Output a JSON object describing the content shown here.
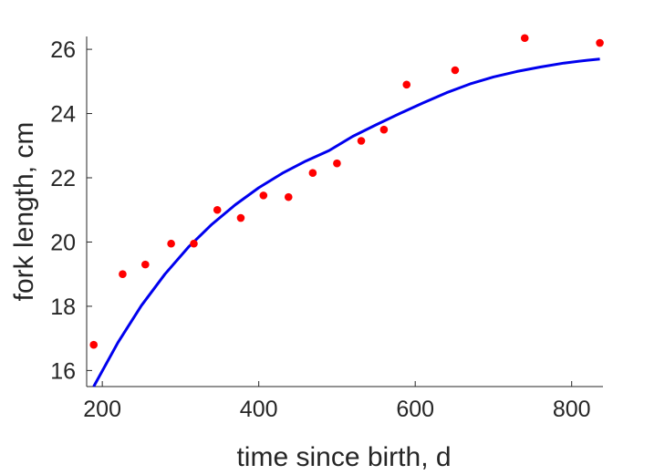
{
  "chart_data": {
    "type": "scatter",
    "title": "",
    "xlabel": "time since birth, d",
    "ylabel": "fork length, cm",
    "xlim": [
      180,
      840
    ],
    "ylim": [
      15.5,
      26.4
    ],
    "xticks": [
      200,
      400,
      600,
      800
    ],
    "yticks": [
      16,
      18,
      20,
      22,
      24,
      26
    ],
    "grid": false,
    "legend": "none",
    "series": [
      {
        "kind": "scatter",
        "color": "#ff0000",
        "points": [
          [
            189,
            16.8
          ],
          [
            226,
            19.0
          ],
          [
            255,
            19.3
          ],
          [
            288,
            19.95
          ],
          [
            317,
            19.95
          ],
          [
            347,
            21.0
          ],
          [
            377,
            20.75
          ],
          [
            406,
            21.45
          ],
          [
            438,
            21.4
          ],
          [
            469,
            22.15
          ],
          [
            500,
            22.45
          ],
          [
            531,
            23.15
          ],
          [
            560,
            23.5
          ],
          [
            589,
            24.9
          ],
          [
            651,
            25.35
          ],
          [
            740,
            26.35
          ],
          [
            836,
            26.2
          ]
        ]
      },
      {
        "kind": "line",
        "color": "#0000ee",
        "points": [
          [
            189,
            15.5
          ],
          [
            220,
            16.87
          ],
          [
            250,
            18.02
          ],
          [
            280,
            19.0
          ],
          [
            310,
            19.84
          ],
          [
            340,
            20.55
          ],
          [
            370,
            21.16
          ],
          [
            400,
            21.69
          ],
          [
            430,
            22.14
          ],
          [
            460,
            22.52
          ],
          [
            490,
            22.85
          ],
          [
            520,
            23.29
          ],
          [
            550,
            23.65
          ],
          [
            580,
            24.0
          ],
          [
            610,
            24.33
          ],
          [
            640,
            24.65
          ],
          [
            670,
            24.92
          ],
          [
            700,
            25.14
          ],
          [
            730,
            25.31
          ],
          [
            760,
            25.45
          ],
          [
            790,
            25.57
          ],
          [
            820,
            25.66
          ],
          [
            836,
            25.7
          ]
        ]
      }
    ]
  }
}
